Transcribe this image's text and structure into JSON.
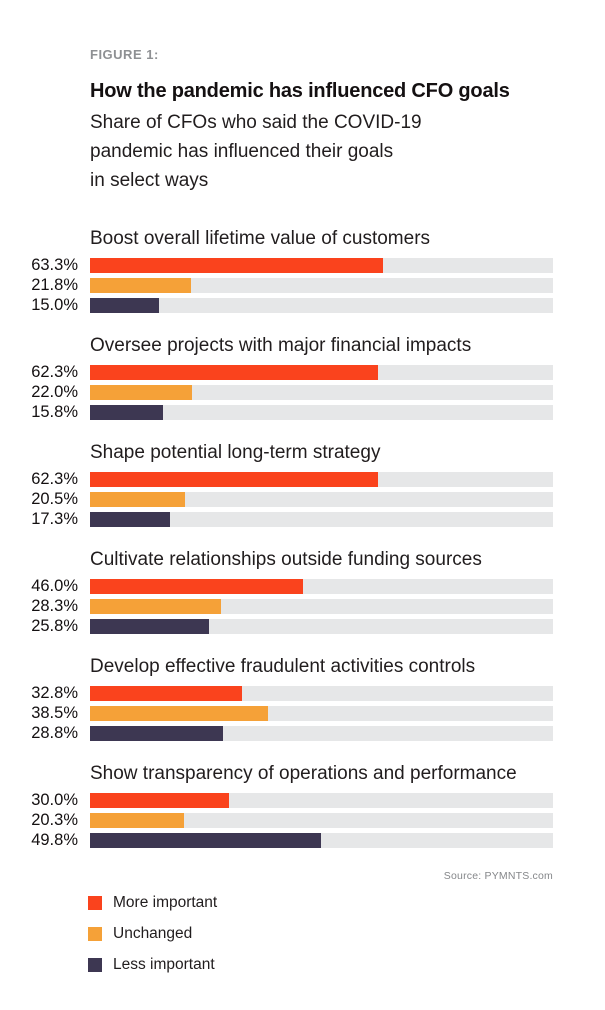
{
  "figure_label": "FIGURE 1:",
  "title": "How the pandemic has influenced CFO goals",
  "subtitle_lines": [
    "Share of CFOs who said the COVID-19",
    "pandemic has influenced their goals",
    "in select ways"
  ],
  "source": "Source: PYMNTS.com",
  "colors": {
    "more_important": "#FA431D",
    "unchanged": "#F5A138",
    "less_important": "#3D3752",
    "track": "#E6E7E8",
    "text": "#211D1E",
    "muted": "#8E9093",
    "source": "#85878A"
  },
  "legend": [
    {
      "label": "More important",
      "color": "#FA431D"
    },
    {
      "label": "Unchanged",
      "color": "#F5A138"
    },
    {
      "label": "Less important",
      "color": "#3D3752"
    }
  ],
  "chart_data": {
    "type": "bar",
    "orientation": "horizontal",
    "title": "How the pandemic has influenced CFO goals",
    "subtitle": "Share of CFOs who said the COVID-19 pandemic has influenced their goals in select ways",
    "unit": "%",
    "xlim": [
      0,
      100
    ],
    "grid": false,
    "legend_position": "bottom-left",
    "series_names": [
      "More important",
      "Unchanged",
      "Less important"
    ],
    "groups": [
      {
        "category": "Boost overall lifetime value of customers",
        "values": [
          63.3,
          21.8,
          15.0
        ],
        "labels": [
          "63.3%",
          "21.8%",
          "15.0%"
        ]
      },
      {
        "category": "Oversee projects with major financial impacts",
        "values": [
          62.3,
          22.0,
          15.8
        ],
        "labels": [
          "62.3%",
          "22.0%",
          "15.8%"
        ]
      },
      {
        "category": "Shape potential long-term strategy",
        "values": [
          62.3,
          20.5,
          17.3
        ],
        "labels": [
          "62.3%",
          "20.5%",
          "17.3%"
        ]
      },
      {
        "category": "Cultivate relationships outside funding sources",
        "values": [
          46.0,
          28.3,
          25.8
        ],
        "labels": [
          "46.0%",
          "28.3%",
          "25.8%"
        ]
      },
      {
        "category": "Develop effective fraudulent activities controls",
        "values": [
          32.8,
          38.5,
          28.8
        ],
        "labels": [
          "32.8%",
          "38.5%",
          "28.8%"
        ]
      },
      {
        "category": "Show transparency of operations and performance",
        "values": [
          30.0,
          20.3,
          49.8
        ],
        "labels": [
          "30.0%",
          "20.3%",
          "49.8%"
        ]
      }
    ]
  }
}
